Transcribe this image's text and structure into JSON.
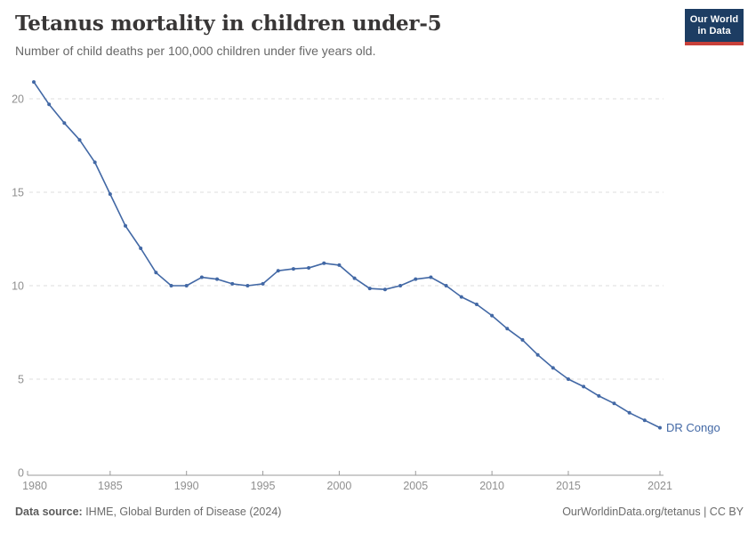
{
  "header": {
    "title": "Tetanus mortality in children under-5",
    "subtitle": "Number of child deaths per 100,000 children under five years old."
  },
  "logo": {
    "line1": "Our World",
    "line2": "in Data",
    "bg_color": "#1d3d63",
    "accent_color": "#c8403a"
  },
  "chart_data": {
    "type": "line",
    "title": "Tetanus mortality in children under-5",
    "subtitle": "Number of child deaths per 100,000 children under five years old.",
    "x": [
      1980,
      1981,
      1982,
      1983,
      1984,
      1985,
      1986,
      1987,
      1988,
      1989,
      1990,
      1991,
      1992,
      1993,
      1994,
      1995,
      1996,
      1997,
      1998,
      1999,
      2000,
      2001,
      2002,
      2003,
      2004,
      2005,
      2006,
      2007,
      2008,
      2009,
      2010,
      2011,
      2012,
      2013,
      2014,
      2015,
      2016,
      2017,
      2018,
      2019,
      2020,
      2021
    ],
    "series": [
      {
        "name": "DR Congo",
        "color": "#4268a5",
        "values": [
          20.9,
          19.7,
          18.7,
          17.8,
          16.6,
          14.9,
          13.2,
          12.0,
          10.7,
          10.0,
          10.0,
          10.45,
          10.35,
          10.1,
          10.0,
          10.1,
          10.8,
          10.9,
          10.95,
          11.2,
          11.1,
          10.4,
          9.85,
          9.8,
          10.0,
          10.35,
          10.45,
          10.0,
          9.4,
          9.0,
          8.4,
          7.7,
          7.1,
          6.3,
          5.6,
          5.0,
          4.6,
          4.1,
          3.7,
          3.2,
          2.8,
          2.4
        ]
      }
    ],
    "xlabel": "",
    "ylabel": "",
    "xlim": [
      1980,
      2021
    ],
    "ylim": [
      0,
      21
    ],
    "yticks": [
      0,
      5,
      10,
      15,
      20
    ],
    "xticks": [
      1980,
      1985,
      1990,
      1995,
      2000,
      2005,
      2010,
      2015,
      2021
    ],
    "grid": "horizontal-dashed",
    "legend": "end-of-line-label",
    "colors": {
      "gridline": "#dcdcdc",
      "axis": "#9a9a9a",
      "tick_label": "#8f8f8f"
    }
  },
  "footer": {
    "source_label": "Data source:",
    "source_text": " IHME, Global Burden of Disease (2024)",
    "link_text": "OurWorldinData.org/tetanus | CC BY"
  }
}
